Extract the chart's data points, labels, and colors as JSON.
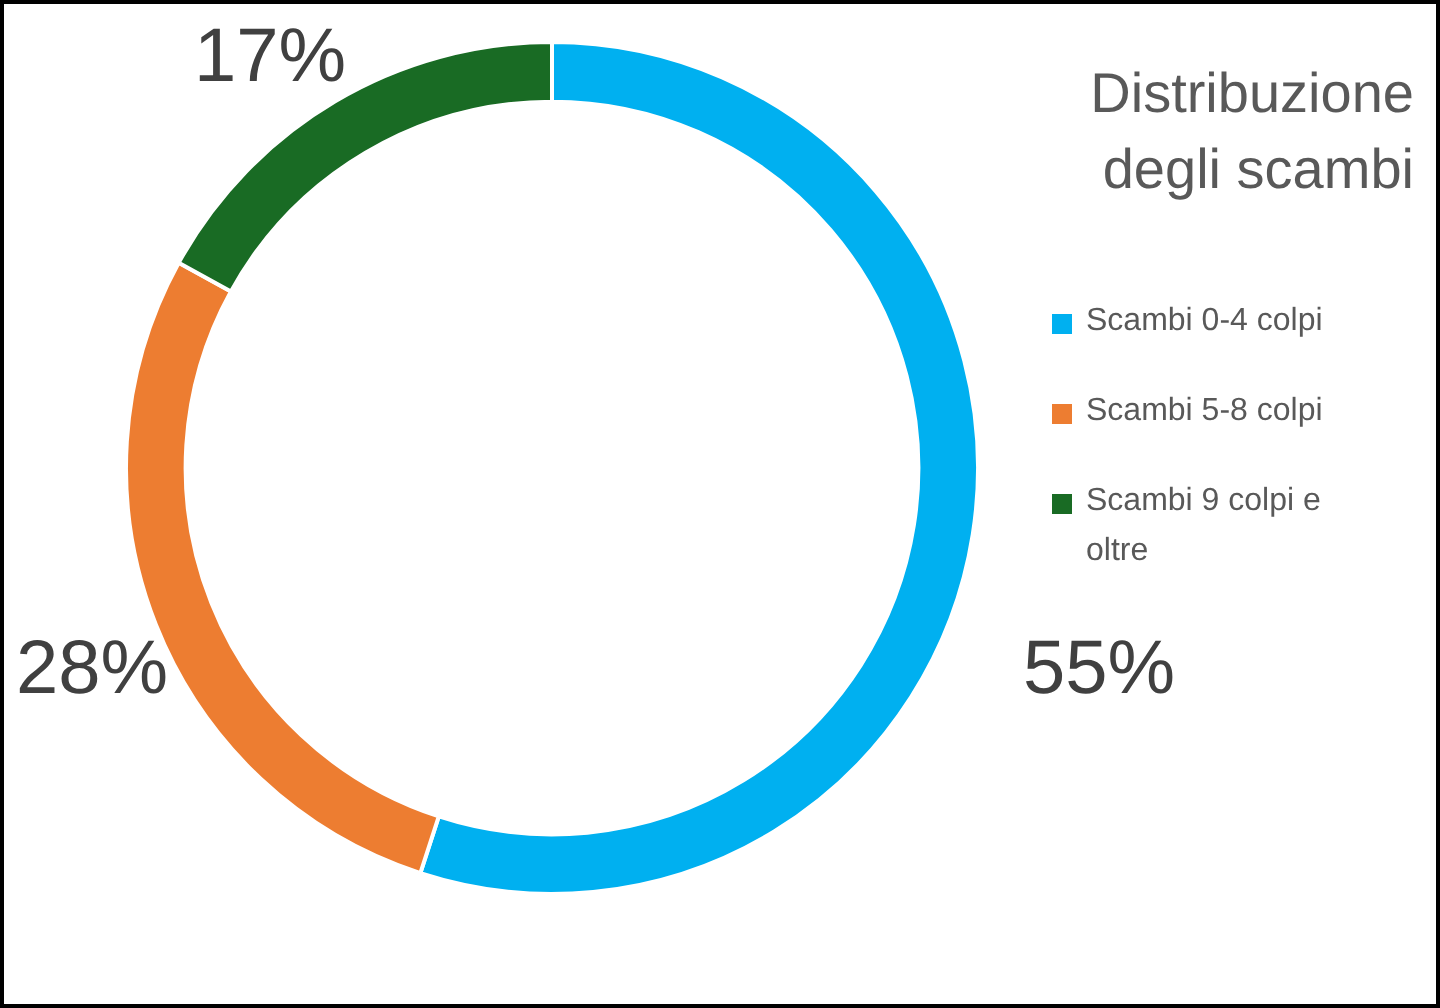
{
  "chart_data": {
    "type": "donut",
    "legend_title": "Distribuzione degli scambi",
    "categories": [
      "Scambi 0-4 colpi",
      "Scambi 5-8 colpi",
      "Scambi 9 colpi e oltre"
    ],
    "values": [
      55,
      28,
      17
    ],
    "colors": [
      "#00b0f0",
      "#ed7d31",
      "#196b24"
    ],
    "value_labels": [
      "55%",
      "28%",
      "17%"
    ],
    "legend": "right"
  }
}
